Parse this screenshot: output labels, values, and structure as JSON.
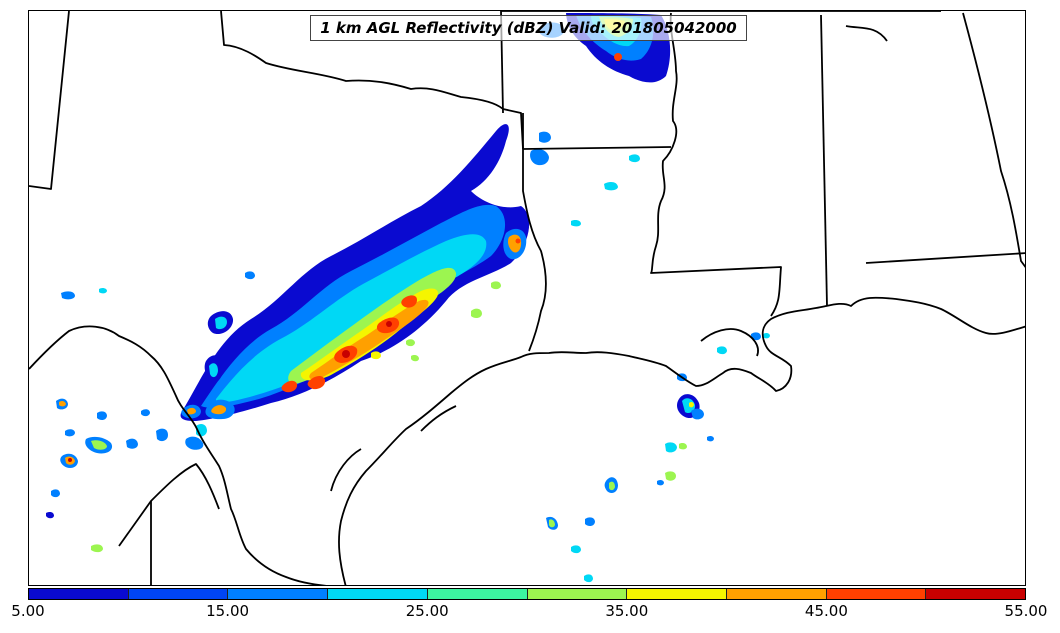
{
  "title": "1 km AGL Reflectivity (dBZ) Valid: 201805042000",
  "colorbar": {
    "colors": [
      "#0a0ad0",
      "#0045f5",
      "#0080ff",
      "#00d8f5",
      "#3cf5a0",
      "#9cf550",
      "#f5f500",
      "#ffa000",
      "#ff4000",
      "#c80000"
    ],
    "ticks": [
      "5.00",
      "15.00",
      "25.00",
      "35.00",
      "45.00",
      "55.00"
    ],
    "min": 5,
    "max": 55
  }
}
